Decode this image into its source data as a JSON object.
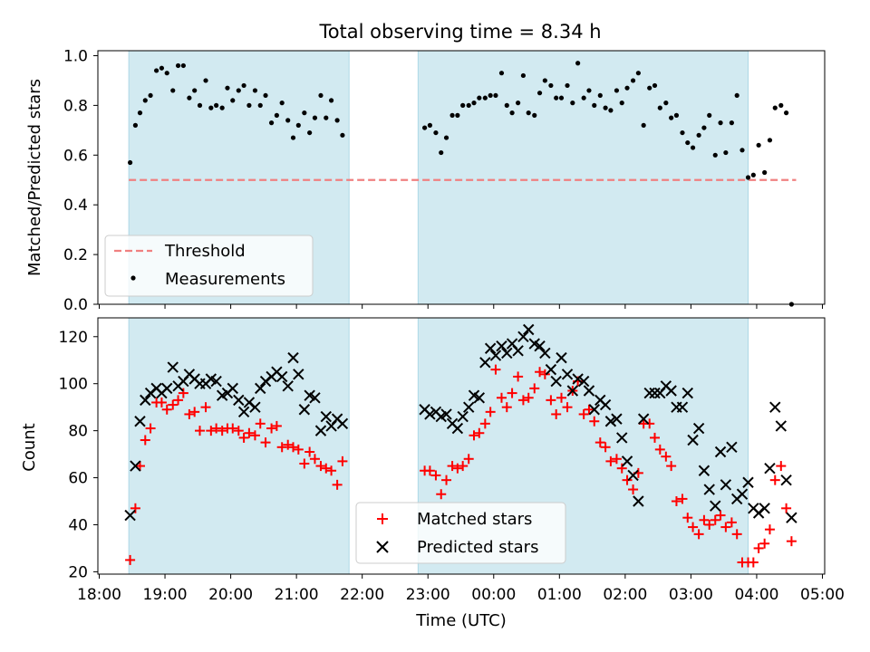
{
  "figure": {
    "title": "Total observing time = 8.34 h"
  },
  "colors": {
    "shade": "#add8e6",
    "threshold": "#f08080",
    "measurement": "#000000",
    "matched": "#ff0000",
    "predicted": "#000000"
  },
  "chart_data": [
    {
      "type": "scatter",
      "panel": "top",
      "ylabel": "Matched/Predicted stars",
      "ylim": [
        0.0,
        1.02
      ],
      "xlim": [
        "18:00",
        "05:00"
      ],
      "yticks": [
        "0.0",
        "0.2",
        "0.4",
        "0.6",
        "0.8",
        "1.0"
      ],
      "x_unit": "hours (UTC), 18:00 = 18.0, 00:00 = 24.0",
      "shaded_intervals": [
        [
          18.45,
          21.8
        ],
        [
          22.85,
          27.87
        ]
      ],
      "threshold": {
        "name": "Threshold",
        "value": 0.5,
        "x_range": [
          18.45,
          28.6
        ],
        "style": "dashed"
      },
      "legend": {
        "position": "lower-left",
        "entries": [
          "Threshold",
          "Measurements"
        ]
      },
      "series": [
        {
          "name": "Measurements",
          "marker": "dot",
          "x": [
            18.47,
            18.55,
            18.62,
            18.7,
            18.78,
            18.87,
            18.95,
            19.03,
            19.12,
            19.2,
            19.28,
            19.37,
            19.45,
            19.53,
            19.62,
            19.7,
            19.78,
            19.87,
            19.95,
            20.03,
            20.12,
            20.2,
            20.28,
            20.37,
            20.45,
            20.53,
            20.62,
            20.7,
            20.78,
            20.87,
            20.95,
            21.03,
            21.12,
            21.2,
            21.28,
            21.37,
            21.45,
            21.53,
            21.62,
            21.7,
            22.95,
            23.03,
            23.12,
            23.2,
            23.28,
            23.37,
            23.45,
            23.53,
            23.62,
            23.7,
            23.78,
            23.87,
            23.95,
            24.03,
            24.12,
            24.2,
            24.28,
            24.37,
            24.45,
            24.53,
            24.62,
            24.7,
            24.78,
            24.87,
            24.95,
            25.03,
            25.12,
            25.2,
            25.28,
            25.37,
            25.45,
            25.53,
            25.62,
            25.7,
            25.78,
            25.87,
            25.95,
            26.03,
            26.12,
            26.2,
            26.28,
            26.37,
            26.45,
            26.53,
            26.62,
            26.7,
            26.78,
            26.87,
            26.95,
            27.03,
            27.12,
            27.2,
            27.28,
            27.37,
            27.45,
            27.53,
            27.62,
            27.7,
            27.78,
            27.87,
            27.95,
            28.03,
            28.12,
            28.2,
            28.28,
            28.37,
            28.45,
            28.53
          ],
          "y": [
            0.57,
            0.72,
            0.77,
            0.82,
            0.84,
            0.94,
            0.95,
            0.93,
            0.86,
            0.96,
            0.96,
            0.83,
            0.86,
            0.8,
            0.9,
            0.79,
            0.8,
            0.79,
            0.87,
            0.82,
            0.86,
            0.88,
            0.8,
            0.86,
            0.8,
            0.84,
            0.73,
            0.76,
            0.81,
            0.74,
            0.67,
            0.72,
            0.77,
            0.69,
            0.75,
            0.84,
            0.75,
            0.82,
            0.74,
            0.68,
            0.71,
            0.72,
            0.69,
            0.61,
            0.67,
            0.76,
            0.76,
            0.8,
            0.8,
            0.81,
            0.83,
            0.83,
            0.84,
            0.84,
            0.93,
            0.8,
            0.77,
            0.81,
            0.92,
            0.77,
            0.76,
            0.85,
            0.9,
            0.88,
            0.83,
            0.83,
            0.88,
            0.81,
            0.97,
            0.83,
            0.86,
            0.8,
            0.84,
            0.79,
            0.78,
            0.86,
            0.81,
            0.87,
            0.9,
            0.93,
            0.72,
            0.87,
            0.88,
            0.79,
            0.81,
            0.75,
            0.76,
            0.69,
            0.65,
            0.63,
            0.68,
            0.71,
            0.76,
            0.6,
            0.73,
            0.61,
            0.73,
            0.84,
            0.62,
            0.51,
            0.52,
            0.64,
            0.53,
            0.66,
            0.79,
            0.8,
            0.77,
            0.0
          ]
        }
      ]
    },
    {
      "type": "scatter",
      "panel": "bottom",
      "xlabel": "Time (UTC)",
      "ylabel": "Count",
      "ylim": [
        19,
        128
      ],
      "xlim": [
        "18:00",
        "05:00"
      ],
      "xticks": [
        "18:00",
        "19:00",
        "20:00",
        "21:00",
        "22:00",
        "23:00",
        "00:00",
        "01:00",
        "02:00",
        "03:00",
        "04:00",
        "05:00"
      ],
      "yticks": [
        "20",
        "40",
        "60",
        "80",
        "100",
        "120"
      ],
      "x_unit": "hours (UTC), 18:00 = 18.0, 00:00 = 24.0",
      "shaded_intervals": [
        [
          18.45,
          21.8
        ],
        [
          22.85,
          27.87
        ]
      ],
      "legend": {
        "position": "lower-center",
        "entries": [
          "Matched stars",
          "Predicted stars"
        ]
      },
      "series": [
        {
          "name": "Matched stars",
          "marker": "plus",
          "x": [
            18.47,
            18.55,
            18.62,
            18.7,
            18.78,
            18.87,
            18.95,
            19.03,
            19.12,
            19.2,
            19.28,
            19.37,
            19.45,
            19.53,
            19.62,
            19.7,
            19.78,
            19.87,
            19.95,
            20.03,
            20.12,
            20.2,
            20.28,
            20.37,
            20.45,
            20.53,
            20.62,
            20.7,
            20.78,
            20.87,
            20.95,
            21.03,
            21.12,
            21.2,
            21.28,
            21.37,
            21.45,
            21.53,
            21.62,
            21.7,
            22.95,
            23.03,
            23.12,
            23.2,
            23.28,
            23.37,
            23.45,
            23.53,
            23.62,
            23.7,
            23.78,
            23.87,
            23.95,
            24.03,
            24.12,
            24.2,
            24.28,
            24.37,
            24.45,
            24.53,
            24.62,
            24.7,
            24.78,
            24.87,
            24.95,
            25.03,
            25.12,
            25.2,
            25.28,
            25.37,
            25.45,
            25.53,
            25.62,
            25.7,
            25.78,
            25.87,
            25.95,
            26.03,
            26.12,
            26.2,
            26.28,
            26.37,
            26.45,
            26.53,
            26.62,
            26.7,
            26.78,
            26.87,
            26.95,
            27.03,
            27.12,
            27.2,
            27.28,
            27.37,
            27.45,
            27.53,
            27.62,
            27.7,
            27.78,
            27.87,
            27.95,
            28.03,
            28.12,
            28.2,
            28.28,
            28.37,
            28.45,
            28.53
          ],
          "y": [
            25,
            47,
            65,
            76,
            81,
            92,
            92,
            89,
            91,
            93,
            96,
            87,
            88,
            80,
            90,
            80,
            81,
            80,
            81,
            81,
            80,
            77,
            79,
            78,
            83,
            75,
            81,
            82,
            73,
            74,
            73,
            72,
            66,
            71,
            68,
            65,
            64,
            63,
            57,
            67,
            63,
            63,
            61,
            53,
            59,
            65,
            64,
            65,
            68,
            78,
            79,
            83,
            88,
            106,
            94,
            90,
            96,
            103,
            93,
            94,
            98,
            105,
            104,
            93,
            87,
            94,
            90,
            97,
            101,
            87,
            89,
            84,
            75,
            73,
            67,
            68,
            64,
            59,
            55,
            62,
            83,
            83,
            77,
            72,
            69,
            65,
            50,
            51,
            43,
            39,
            36,
            42,
            40,
            42,
            44,
            39,
            41,
            36,
            24,
            24,
            24,
            30,
            32,
            38,
            59,
            65,
            47,
            33
          ]
        },
        {
          "name": "Predicted stars",
          "marker": "x",
          "x": [
            18.47,
            18.55,
            18.62,
            18.7,
            18.78,
            18.87,
            18.95,
            19.03,
            19.12,
            19.2,
            19.28,
            19.37,
            19.45,
            19.53,
            19.62,
            19.7,
            19.78,
            19.87,
            19.95,
            20.03,
            20.12,
            20.2,
            20.28,
            20.37,
            20.45,
            20.53,
            20.62,
            20.7,
            20.78,
            20.87,
            20.95,
            21.03,
            21.12,
            21.2,
            21.28,
            21.37,
            21.45,
            21.53,
            21.62,
            21.7,
            22.95,
            23.03,
            23.12,
            23.2,
            23.28,
            23.37,
            23.45,
            23.53,
            23.62,
            23.7,
            23.78,
            23.87,
            23.95,
            24.03,
            24.12,
            24.2,
            24.28,
            24.37,
            24.45,
            24.53,
            24.62,
            24.7,
            24.78,
            24.87,
            24.95,
            25.03,
            25.12,
            25.2,
            25.28,
            25.37,
            25.45,
            25.53,
            25.62,
            25.7,
            25.78,
            25.87,
            25.95,
            26.03,
            26.12,
            26.2,
            26.28,
            26.37,
            26.45,
            26.53,
            26.62,
            26.7,
            26.78,
            26.87,
            26.95,
            27.03,
            27.12,
            27.2,
            27.28,
            27.37,
            27.45,
            27.53,
            27.62,
            27.7,
            27.78,
            27.87,
            27.95,
            28.03,
            28.12,
            28.2,
            28.28,
            28.37,
            28.45,
            28.53
          ],
          "y": [
            44,
            65,
            84,
            93,
            96,
            98,
            96,
            98,
            107,
            99,
            101,
            104,
            102,
            100,
            100,
            102,
            101,
            95,
            96,
            98,
            93,
            88,
            92,
            90,
            98,
            101,
            103,
            105,
            103,
            99,
            111,
            104,
            89,
            95,
            94,
            80,
            86,
            82,
            85,
            83,
            89,
            87,
            88,
            86,
            87,
            83,
            81,
            86,
            90,
            95,
            94,
            109,
            115,
            112,
            116,
            113,
            117,
            114,
            120,
            123,
            117,
            116,
            113,
            106,
            101,
            111,
            104,
            97,
            102,
            101,
            97,
            89,
            93,
            91,
            84,
            85,
            77,
            67,
            61,
            50,
            85,
            96,
            96,
            96,
            99,
            97,
            90,
            90,
            96,
            76,
            81,
            63,
            55,
            48,
            71,
            57,
            73,
            51,
            53,
            58,
            47,
            45,
            47,
            64,
            90,
            82,
            59,
            43
          ]
        }
      ]
    }
  ]
}
